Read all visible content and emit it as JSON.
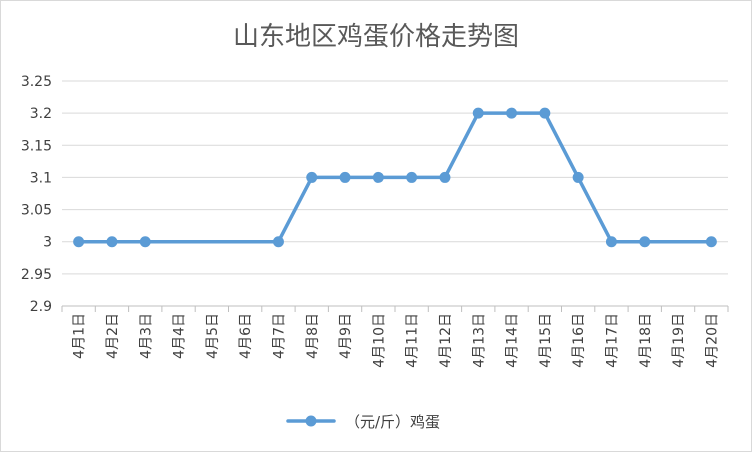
{
  "chart_data": {
    "type": "line",
    "title": "山东地区鸡蛋价格走势图",
    "categories": [
      "4月1日",
      "4月2日",
      "4月3日",
      "4月4日",
      "4月5日",
      "4月6日",
      "4月7日",
      "4月8日",
      "4月9日",
      "4月10日",
      "4月11日",
      "4月12日",
      "4月13日",
      "4月14日",
      "4月15日",
      "4月16日",
      "4月17日",
      "4月18日",
      "4月19日",
      "4月20日"
    ],
    "series": [
      {
        "name": "（元/斤）鸡蛋",
        "color": "#5b9bd5",
        "values": [
          3,
          3,
          3,
          null,
          null,
          null,
          3,
          3.1,
          3.1,
          3.1,
          3.1,
          3.1,
          3.2,
          3.2,
          3.2,
          3.1,
          3,
          3,
          null,
          3
        ]
      }
    ],
    "ylim": [
      2.9,
      3.25
    ],
    "yticks": [
      "2.9",
      "2.95",
      "3",
      "3.05",
      "3.1",
      "3.15",
      "3.2",
      "3.25"
    ],
    "xlabel": "",
    "ylabel": "",
    "grid": true,
    "legend": "bottom"
  }
}
